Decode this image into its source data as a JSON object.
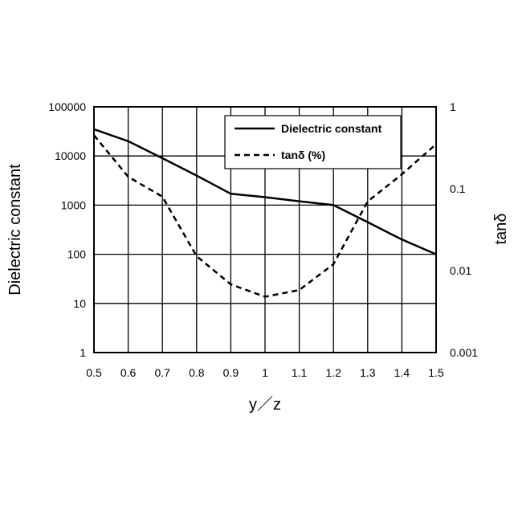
{
  "chart_data": {
    "type": "line",
    "xlabel": "y／z",
    "ylabel": "Dielectric constant",
    "y2label": "tanδ",
    "x": [
      0.5,
      0.6,
      0.7,
      0.8,
      0.9,
      1.0,
      1.1,
      1.2,
      1.3,
      1.4,
      1.5
    ],
    "xticks": [
      "0.5",
      "0.6",
      "0.7",
      "0.8",
      "0.9",
      "1",
      "1.1",
      "1.2",
      "1.3",
      "1.4",
      "1.5"
    ],
    "xlim": [
      0.5,
      1.5
    ],
    "ylim": [
      1,
      100000
    ],
    "y2lim": [
      0.001,
      1
    ],
    "yscale": "log",
    "y2scale": "log",
    "yticks": [
      "1",
      "10",
      "100",
      "1000",
      "10000",
      "100000"
    ],
    "y2ticks": [
      "0.001",
      "0.01",
      "0.1",
      "1"
    ],
    "grid": true,
    "legend_position": "top-right",
    "series": [
      {
        "name": "Dielectric constant",
        "axis": "left",
        "style": "solid",
        "color": "#000000",
        "values": [
          35000,
          20000,
          9000,
          4000,
          1700,
          1450,
          1200,
          1000,
          450,
          200,
          100
        ]
      },
      {
        "name": "tanδ (%)",
        "axis": "right",
        "style": "dashed",
        "color": "#000000",
        "values": [
          0.45,
          0.14,
          0.08,
          0.015,
          0.0068,
          0.0048,
          0.0058,
          0.012,
          0.07,
          0.15,
          0.35
        ]
      }
    ]
  }
}
